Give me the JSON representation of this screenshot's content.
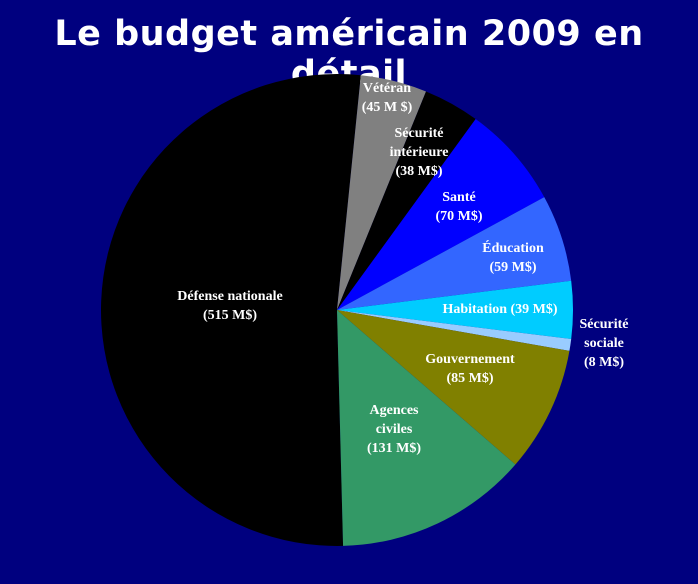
{
  "title": "Le budget américain 2009 en détail",
  "chart_data": {
    "type": "pie",
    "title": "Le budget américain 2009 en détail",
    "slices": [
      {
        "name": "Défense nationale",
        "value": 515,
        "label_lines": [
          "Défense nationale",
          "(515 M$)"
        ],
        "color": "#000000"
      },
      {
        "name": "Vétéran",
        "value": 45,
        "label_lines": [
          "Vétéran",
          "(45 M $)"
        ],
        "color": "#808080"
      },
      {
        "name": "Sécurité intérieure",
        "value": 38,
        "label_lines": [
          "Sécurité",
          "intérieure",
          "(38 M$)"
        ],
        "color": "#000000"
      },
      {
        "name": "Santé",
        "value": 70,
        "label_lines": [
          "Santé",
          "(70 M$)"
        ],
        "color": "#0000ff"
      },
      {
        "name": "Éducation",
        "value": 59,
        "label_lines": [
          "Éducation",
          "(59 M$)"
        ],
        "color": "#3366ff"
      },
      {
        "name": "Habitation",
        "value": 39,
        "label_lines": [
          "Habitation (39 M$)"
        ],
        "color": "#00ccff"
      },
      {
        "name": "Sécurité sociale",
        "value": 8,
        "label_lines": [
          "Sécurité",
          "sociale",
          "(8 M$)"
        ],
        "color": "#99ccff"
      },
      {
        "name": "Gouvernement",
        "value": 85,
        "label_lines": [
          "Gouvernement",
          "(85 M$)"
        ],
        "color": "#808000"
      },
      {
        "name": "Agences civiles",
        "value": 131,
        "label_lines": [
          "Agences",
          "civiles",
          "(131 M$)"
        ],
        "color": "#339966"
      }
    ]
  }
}
